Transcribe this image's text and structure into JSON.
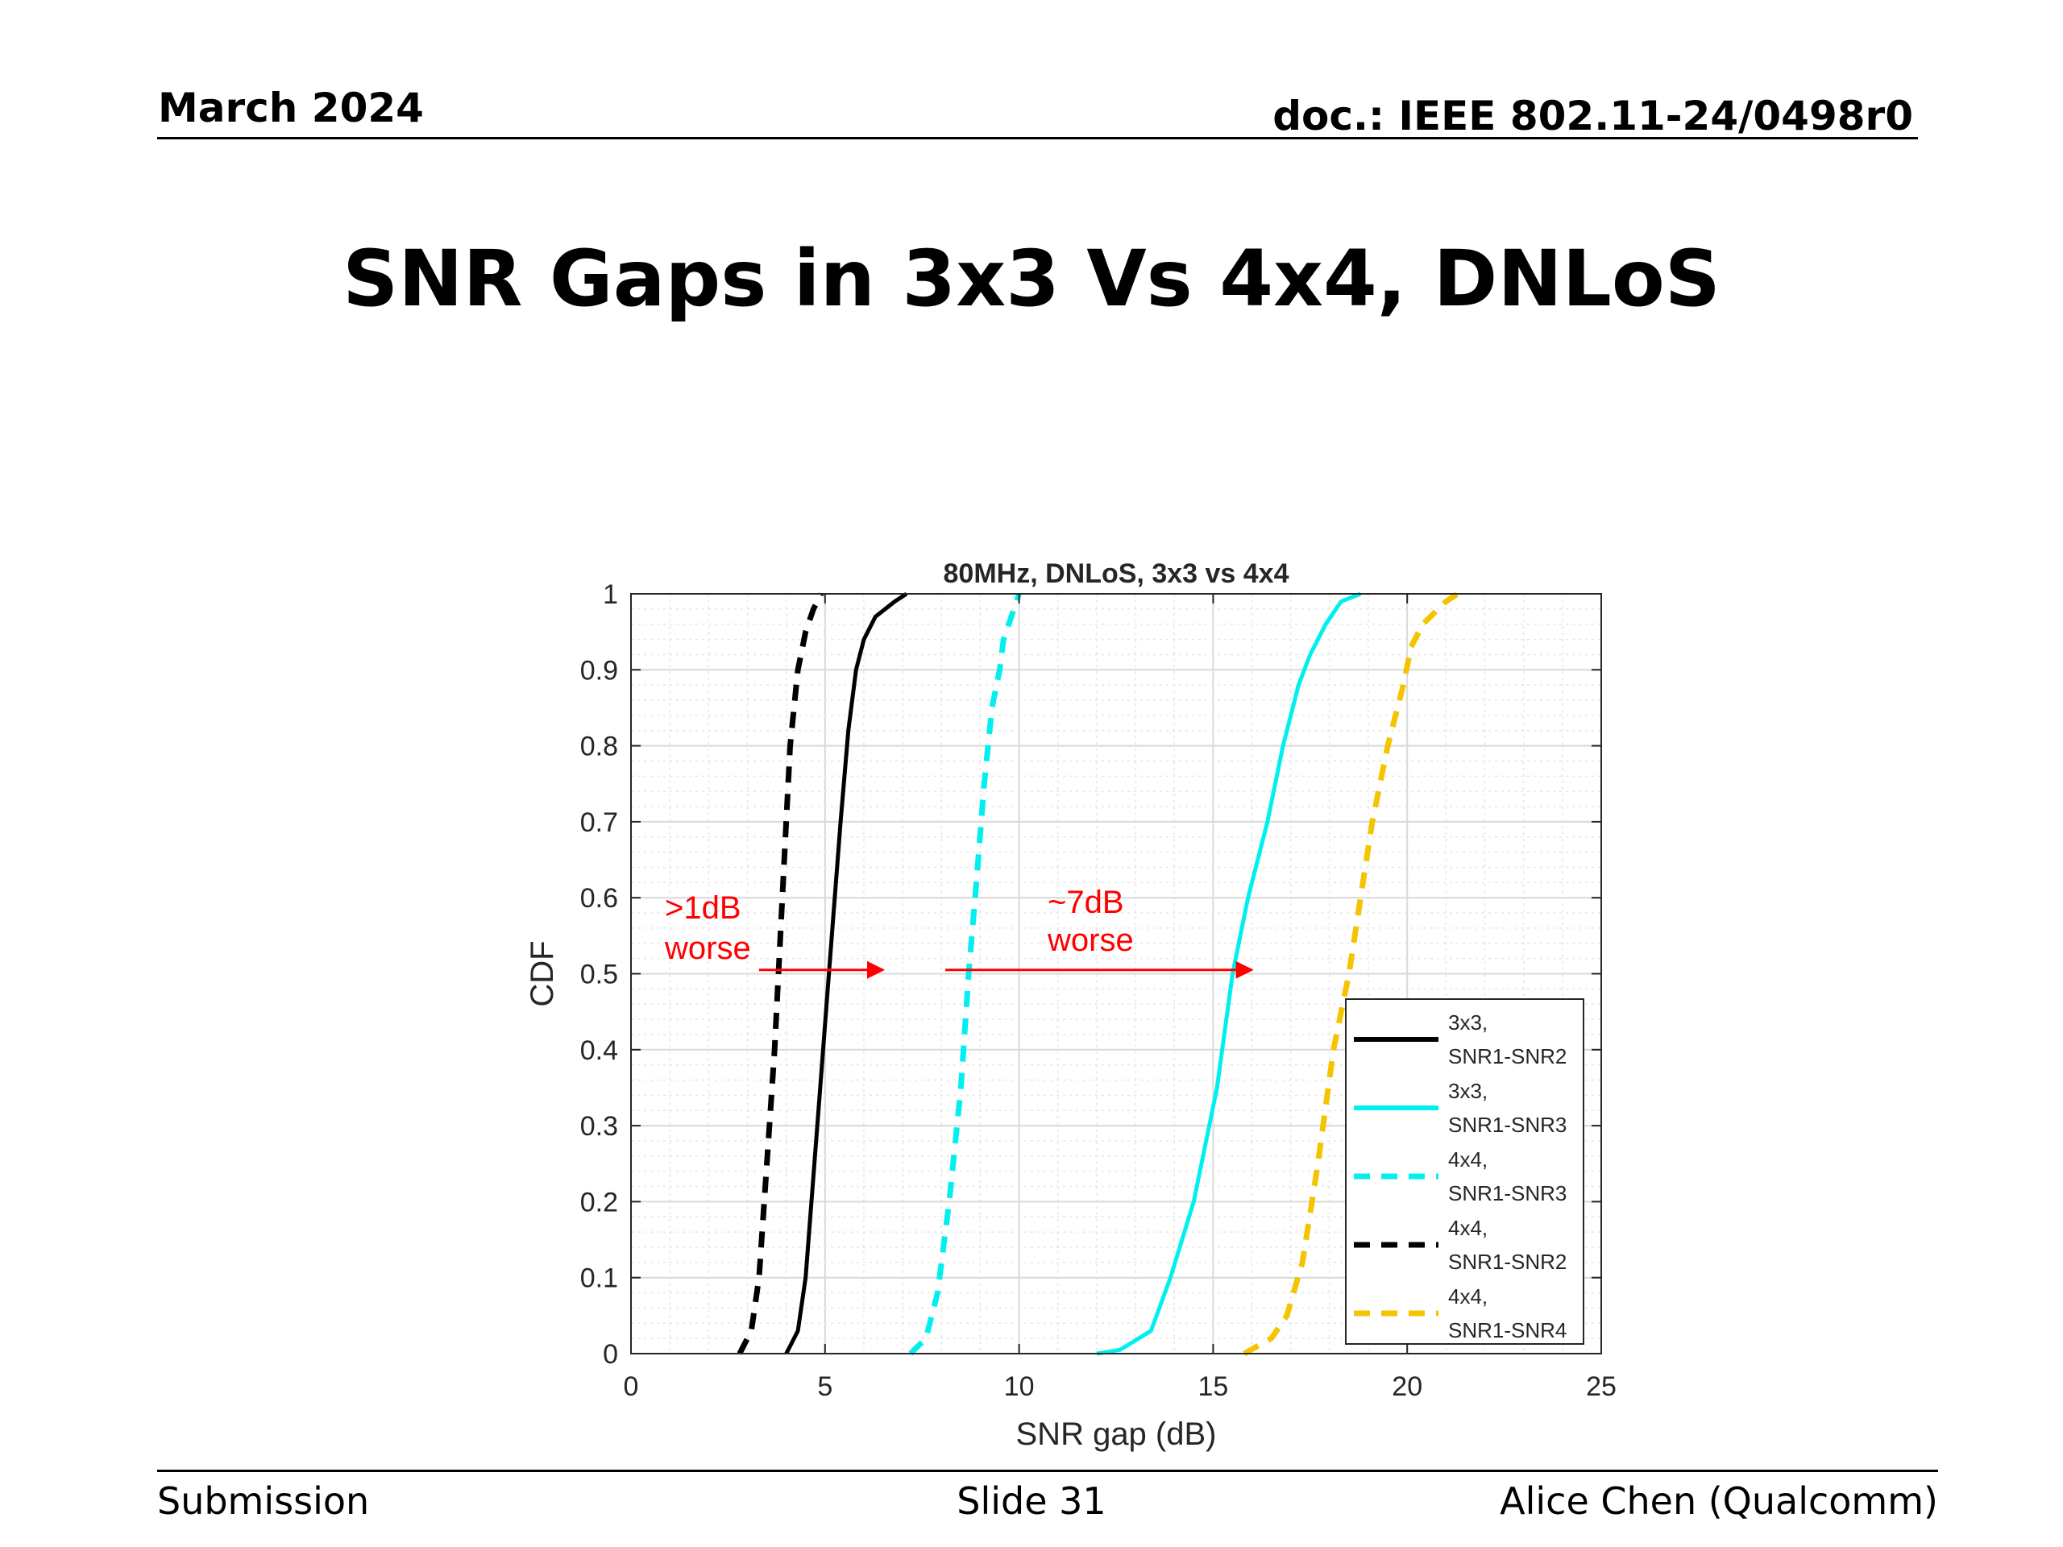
{
  "header": {
    "date": "March 2024",
    "doc": "doc.: IEEE 802.11-24/0498r0"
  },
  "slide_title": "SNR Gaps in 3x3 Vs 4x4, DNLoS",
  "footer": {
    "left": "Submission",
    "center": "Slide 31",
    "right": "Alice Chen (Qualcomm)"
  },
  "chart_data": {
    "type": "line",
    "title": "80MHz, DNLoS, 3x3 vs 4x4",
    "xlabel": "SNR gap (dB)",
    "ylabel": "CDF",
    "xlim": [
      0,
      25
    ],
    "ylim": [
      0,
      1
    ],
    "xticks": [
      "0",
      "5",
      "10",
      "15",
      "20",
      "25"
    ],
    "yticks": [
      "0",
      "0.1",
      "0.2",
      "0.3",
      "0.4",
      "0.5",
      "0.6",
      "0.7",
      "0.8",
      "0.9",
      "1"
    ],
    "grid": "major and minor",
    "legend_position": "bottom-right",
    "series": [
      {
        "name": "3x3, SNR1-SNR2",
        "legend_lines": [
          "3x3,",
          "SNR1-SNR2"
        ],
        "color": "#000000",
        "dash": "solid",
        "x": [
          4.0,
          4.1,
          4.3,
          4.5,
          4.8,
          5.1,
          5.4,
          5.6,
          5.8,
          6.0,
          6.3,
          6.8,
          7.1
        ],
        "y": [
          0,
          0.01,
          0.03,
          0.1,
          0.3,
          0.5,
          0.7,
          0.82,
          0.9,
          0.94,
          0.97,
          0.99,
          1.0
        ]
      },
      {
        "name": "3x3, SNR1-SNR3",
        "legend_lines": [
          "3x3,",
          "SNR1-SNR3"
        ],
        "color": "#00f0f0",
        "dash": "solid",
        "x": [
          12.0,
          12.6,
          13.4,
          13.9,
          14.5,
          15.1,
          15.5,
          15.9,
          16.4,
          16.8,
          17.2,
          17.5,
          17.9,
          18.3,
          18.8
        ],
        "y": [
          0,
          0.005,
          0.03,
          0.1,
          0.2,
          0.35,
          0.5,
          0.6,
          0.7,
          0.8,
          0.88,
          0.92,
          0.96,
          0.99,
          1.0
        ]
      },
      {
        "name": "4x4, SNR1-SNR3",
        "legend_lines": [
          "4x4,",
          "SNR1-SNR3"
        ],
        "color": "#00f0f0",
        "dash": "dashed",
        "x": [
          7.2,
          7.6,
          7.9,
          8.2,
          8.5,
          8.7,
          8.9,
          9.1,
          9.3,
          9.5,
          9.6,
          9.8,
          10.0
        ],
        "y": [
          0,
          0.02,
          0.08,
          0.2,
          0.35,
          0.5,
          0.62,
          0.75,
          0.85,
          0.9,
          0.94,
          0.97,
          1.0
        ]
      },
      {
        "name": "4x4, SNR1-SNR2",
        "legend_lines": [
          "4x4,",
          "SNR1-SNR2"
        ],
        "color": "#000000",
        "dash": "dashed",
        "x": [
          2.8,
          3.1,
          3.3,
          3.5,
          3.7,
          3.8,
          3.95,
          4.1,
          4.3,
          4.5,
          4.7,
          4.9
        ],
        "y": [
          0,
          0.03,
          0.1,
          0.25,
          0.4,
          0.5,
          0.65,
          0.8,
          0.9,
          0.95,
          0.98,
          1.0
        ]
      },
      {
        "name": "4x4, SNR1-SNR4",
        "legend_lines": [
          "4x4,",
          "SNR1-SNR4"
        ],
        "color": "#f5c400",
        "dash": "dashed",
        "x": [
          15.8,
          16.5,
          16.9,
          17.3,
          17.7,
          18.1,
          18.5,
          18.8,
          19.1,
          19.5,
          19.9,
          20.1,
          20.4,
          21.0,
          21.3
        ],
        "y": [
          0,
          0.02,
          0.05,
          0.12,
          0.25,
          0.4,
          0.5,
          0.6,
          0.7,
          0.8,
          0.88,
          0.93,
          0.96,
          0.99,
          1.0
        ]
      }
    ],
    "annotations": [
      {
        "lines": [
          ">1dB",
          "worse"
        ],
        "color": "#ff0000",
        "arrow_from": [
          3.3,
          0.505
        ],
        "arrow_to": [
          6.5,
          0.505
        ]
      },
      {
        "lines": [
          "~7dB",
          "worse"
        ],
        "color": "#ff0000",
        "arrow_from": [
          8.1,
          0.505
        ],
        "arrow_to": [
          16.0,
          0.505
        ]
      }
    ]
  }
}
